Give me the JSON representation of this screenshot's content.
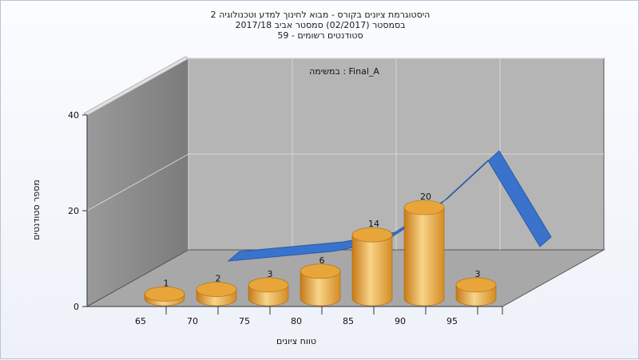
{
  "title": {
    "line1": "היסטוגרמת ציונים בקורס - מבוא לחינוך למדע וטכנולוגיה 2",
    "line2": "בסמסטר  (02/2017)  סמסטר אביב 2017/18",
    "line3": "סטודנטים רשומים - 59"
  },
  "chart_data": {
    "type": "bar",
    "title": "היסטוגרמת ציונים בקורס - מבוא לחינוך למדע וטכנולוגיה 2",
    "annotation": "במשימה : Final_A",
    "xlabel": "טווח ציונים",
    "ylabel": "מספר סטודנטים",
    "ylim": [
      0,
      40
    ],
    "yticks": [
      0,
      20,
      40
    ],
    "xticks": [
      65,
      70,
      75,
      80,
      85,
      90,
      95
    ],
    "categories": [
      "65",
      "70",
      "75",
      "80",
      "85",
      "90",
      "95"
    ],
    "values": [
      1,
      2,
      3,
      6,
      14,
      20,
      3
    ],
    "trend": [
      {
        "x": 70,
        "y": 3
      },
      {
        "x": 75,
        "y": 4
      },
      {
        "x": 80,
        "y": 5
      },
      {
        "x": 85,
        "y": 7
      },
      {
        "x": 90,
        "y": 14
      },
      {
        "x": 95,
        "y": 24
      },
      {
        "x": 100,
        "y": 6
      }
    ],
    "colors": {
      "bar": "#e8a53a",
      "bar_light": "#f8d48a",
      "trend": "#3a73cc",
      "back_wall": "#b6b6b6",
      "side_wall": "#8a8a8a",
      "floor": "#a9a9a9"
    },
    "grid": true,
    "legend": "none"
  }
}
